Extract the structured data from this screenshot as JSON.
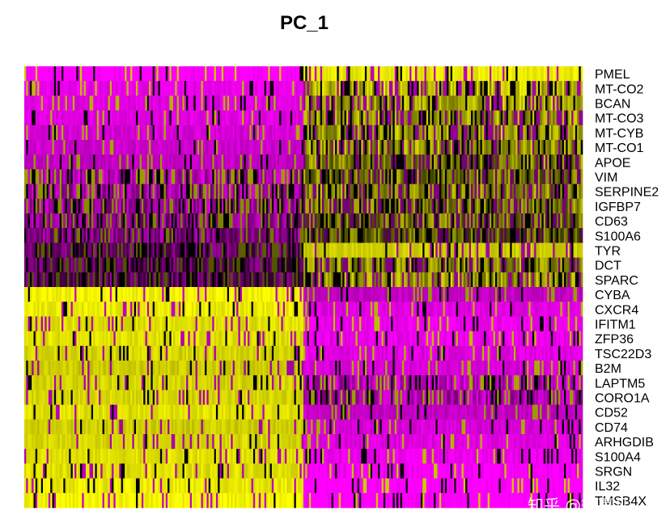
{
  "chart_data": {
    "type": "heatmap",
    "title": "PC_1",
    "genes": [
      "PMEL",
      "MT-CO2",
      "BCAN",
      "MT-CO3",
      "MT-CYB",
      "MT-CO1",
      "APOE",
      "VIM",
      "SERPINE2",
      "IGFBP7",
      "CD63",
      "S100A6",
      "TYR",
      "DCT",
      "SPARC",
      "CYBA",
      "CXCR4",
      "IFITM1",
      "ZFP36",
      "TSC22D3",
      "B2M",
      "LAPTM5",
      "CORO1A",
      "CD52",
      "CD74",
      "ARHGDIB",
      "S100A4",
      "SRGN",
      "IL32",
      "TMSB4X"
    ],
    "cell_groups": [
      "left",
      "right"
    ],
    "mean_scaled_expression": {
      "left": [
        -2.5,
        -2.3,
        -2.2,
        -2.2,
        -2.1,
        -2.0,
        -1.9,
        -1.7,
        -1.6,
        -1.5,
        -1.4,
        -1.3,
        -1.0,
        -0.9,
        -0.9,
        2.4,
        2.3,
        2.2,
        2.2,
        2.1,
        2.0,
        2.1,
        2.1,
        2.2,
        2.0,
        2.1,
        2.2,
        2.2,
        2.3,
        2.4
      ],
      "right": [
        2.3,
        1.8,
        1.7,
        1.6,
        1.6,
        1.5,
        1.3,
        1.2,
        1.4,
        1.3,
        1.2,
        1.0,
        2.0,
        1.4,
        1.6,
        -1.9,
        -2.2,
        -2.3,
        -2.3,
        -2.2,
        -2.1,
        -1.8,
        -1.7,
        -1.9,
        -2.1,
        -2.2,
        -2.3,
        -2.4,
        -2.5,
        -2.5
      ]
    },
    "color_scale": {
      "low": "#ff00ff",
      "mid": "#000000",
      "high": "#ffff00"
    },
    "legend": "none",
    "grid": false
  },
  "watermark": "知乎 @徐嘉凡"
}
